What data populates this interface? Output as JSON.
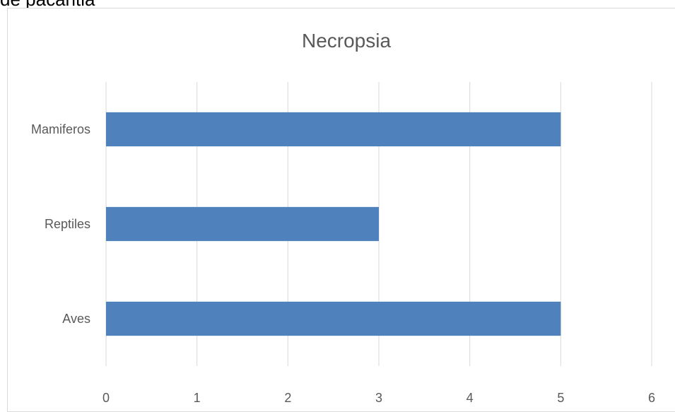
{
  "top_text": "de pacantia",
  "chart_data": {
    "type": "bar",
    "orientation": "horizontal",
    "title": "Necropsia",
    "categories": [
      "Mamiferos",
      "Reptiles",
      "Aves"
    ],
    "values": [
      5,
      3,
      5
    ],
    "xlim": [
      0,
      6
    ],
    "xticks": [
      "0",
      "1",
      "2",
      "3",
      "4",
      "5",
      "6"
    ],
    "xlabel": "",
    "ylabel": "",
    "grid": "vertical",
    "bar_color": "#4f81bd"
  }
}
